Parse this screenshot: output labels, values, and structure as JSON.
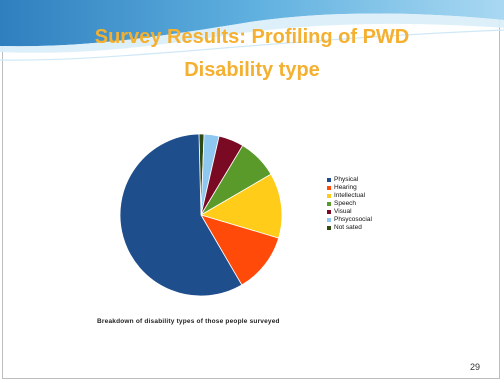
{
  "slide": {
    "title_line1": "Survey Results: Profiling of PWD",
    "title_line2": "Disability type",
    "caption": "Breakdown of disability types of those people surveyed",
    "page_number": "29",
    "title_color": "#f4b030"
  },
  "chart_data": {
    "type": "pie",
    "categories": [
      "Physical",
      "Hearing",
      "Intellectual",
      "Speech",
      "Visual",
      "Phsycosocial",
      "Not sated"
    ],
    "values": [
      58,
      12,
      13,
      8,
      5,
      3,
      1
    ],
    "colors": [
      "#1f4e8c",
      "#ff4a0a",
      "#ffcc1a",
      "#5a9a2a",
      "#7a0a24",
      "#8ec8f0",
      "#2f4a10"
    ],
    "legend_position": "right"
  }
}
